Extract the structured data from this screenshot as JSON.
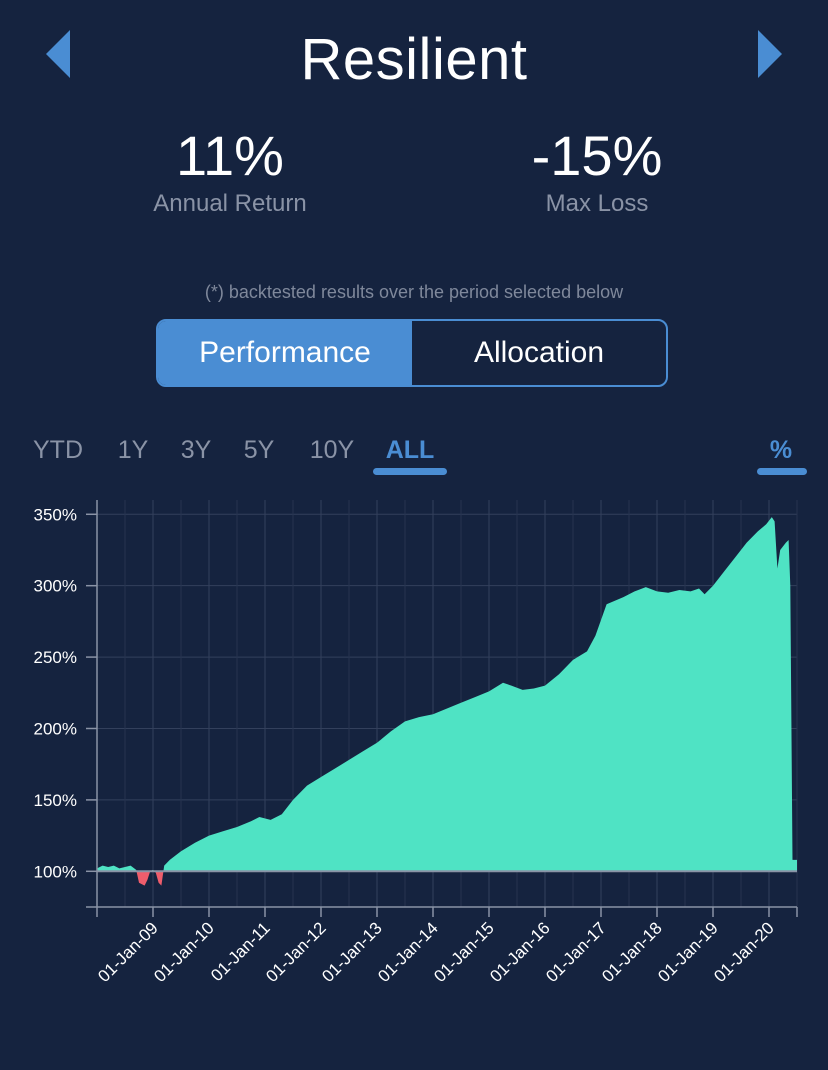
{
  "header": {
    "title": "Resilient",
    "prev_icon": "triangle-left-icon",
    "next_icon": "triangle-right-icon",
    "accent": "#4a8dd3"
  },
  "metrics": {
    "annual_return": {
      "value": "11%",
      "label": "Annual Return"
    },
    "max_loss": {
      "value": "-15%",
      "label": "Max Loss"
    }
  },
  "note": "(*) backtested results over the period selected below",
  "segments": [
    {
      "label": "Performance",
      "active": true
    },
    {
      "label": "Allocation",
      "active": false
    }
  ],
  "range_tabs": [
    {
      "label": "YTD",
      "active": false
    },
    {
      "label": "1Y",
      "active": false
    },
    {
      "label": "3Y",
      "active": false
    },
    {
      "label": "5Y",
      "active": false
    },
    {
      "label": "10Y",
      "active": false
    },
    {
      "label": "ALL",
      "active": true
    }
  ],
  "unit_toggle": {
    "label": "%",
    "active": true
  },
  "chart_data": {
    "type": "area",
    "ylabels": [
      "350%",
      "300%",
      "250%",
      "200%",
      "150%",
      "100%"
    ],
    "yticks": [
      350,
      300,
      250,
      200,
      150,
      100
    ],
    "ylim": [
      75,
      360
    ],
    "xlim": [
      2008.0,
      2020.5
    ],
    "xlabels": [
      "01-Jan-09",
      "01-Jan-10",
      "01-Jan-11",
      "01-Jan-12",
      "01-Jan-13",
      "01-Jan-14",
      "01-Jan-15",
      "01-Jan-16",
      "01-Jan-17",
      "01-Jan-18",
      "01-Jan-19",
      "01-Jan-20"
    ],
    "xticks": [
      2009,
      2010,
      2011,
      2012,
      2013,
      2014,
      2015,
      2016,
      2017,
      2018,
      2019,
      2020
    ],
    "baseline": 100,
    "positive_color": "#4fe3c4",
    "negative_color": "#ee5d6c",
    "grid": true,
    "series": [
      {
        "points": [
          [
            2008.0,
            102
          ],
          [
            2008.1,
            104
          ],
          [
            2008.2,
            103
          ],
          [
            2008.3,
            104
          ],
          [
            2008.4,
            102
          ],
          [
            2008.5,
            103
          ],
          [
            2008.6,
            104
          ],
          [
            2008.7,
            101
          ],
          [
            2008.75,
            92
          ],
          [
            2008.85,
            90
          ],
          [
            2008.9,
            94
          ],
          [
            2008.95,
            100
          ],
          [
            2009.0,
            101
          ],
          [
            2009.05,
            99
          ],
          [
            2009.1,
            92
          ],
          [
            2009.15,
            90
          ],
          [
            2009.2,
            104
          ],
          [
            2009.3,
            108
          ],
          [
            2009.5,
            114
          ],
          [
            2009.75,
            120
          ],
          [
            2010.0,
            125
          ],
          [
            2010.25,
            128
          ],
          [
            2010.5,
            131
          ],
          [
            2010.75,
            135
          ],
          [
            2010.9,
            138
          ],
          [
            2011.1,
            136
          ],
          [
            2011.3,
            140
          ],
          [
            2011.5,
            150
          ],
          [
            2011.75,
            160
          ],
          [
            2012.0,
            166
          ],
          [
            2012.25,
            172
          ],
          [
            2012.5,
            178
          ],
          [
            2012.75,
            184
          ],
          [
            2013.0,
            190
          ],
          [
            2013.25,
            198
          ],
          [
            2013.5,
            205
          ],
          [
            2013.75,
            208
          ],
          [
            2014.0,
            210
          ],
          [
            2014.25,
            214
          ],
          [
            2014.5,
            218
          ],
          [
            2014.75,
            222
          ],
          [
            2015.0,
            226
          ],
          [
            2015.25,
            232
          ],
          [
            2015.4,
            230
          ],
          [
            2015.6,
            227
          ],
          [
            2015.8,
            228
          ],
          [
            2016.0,
            230
          ],
          [
            2016.25,
            238
          ],
          [
            2016.5,
            248
          ],
          [
            2016.75,
            254
          ],
          [
            2016.9,
            265
          ],
          [
            2017.0,
            276
          ],
          [
            2017.1,
            287
          ],
          [
            2017.4,
            292
          ],
          [
            2017.6,
            296
          ],
          [
            2017.8,
            299
          ],
          [
            2018.0,
            296
          ],
          [
            2018.2,
            295
          ],
          [
            2018.4,
            297
          ],
          [
            2018.6,
            296
          ],
          [
            2018.75,
            298
          ],
          [
            2018.85,
            294
          ],
          [
            2019.0,
            300
          ],
          [
            2019.2,
            310
          ],
          [
            2019.4,
            320
          ],
          [
            2019.6,
            330
          ],
          [
            2019.8,
            338
          ],
          [
            2019.95,
            343
          ],
          [
            2020.05,
            348
          ],
          [
            2020.1,
            345
          ],
          [
            2020.15,
            312
          ],
          [
            2020.2,
            325
          ],
          [
            2020.3,
            330
          ],
          [
            2020.35,
            332
          ],
          [
            2020.38,
            300
          ],
          [
            2020.42,
            108
          ],
          [
            2020.5,
            108
          ]
        ]
      }
    ]
  }
}
